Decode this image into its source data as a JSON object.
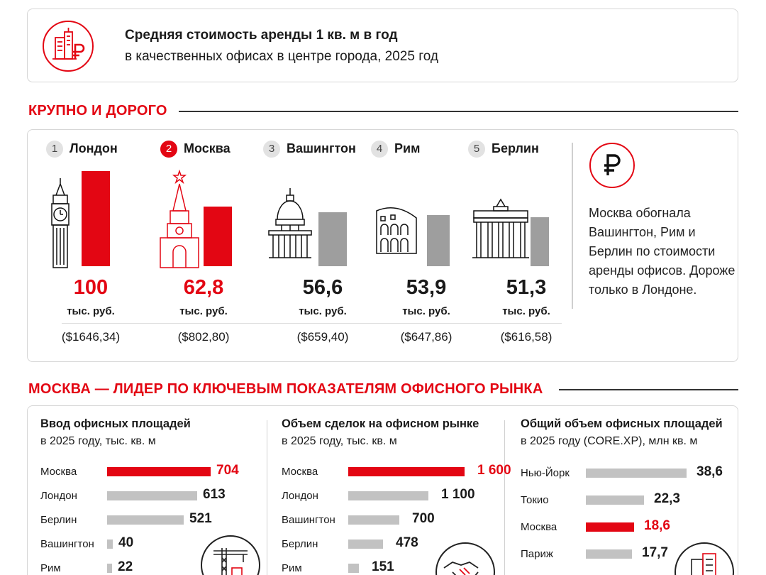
{
  "header": {
    "title": "Средняя стоимость аренды 1 кв. м в год",
    "subtitle": "в качественных офисах в центре города, 2025 год"
  },
  "section1": {
    "title": "КРУПНО И ДОРОГО"
  },
  "section2": {
    "title": "МОСКВА — ЛИДЕР ПО КЛЮЧЕВЫМ ПОКАЗАТЕЛЯМ ОФИСНОГО РЫНКА"
  },
  "note": "Москва обогнала Вашингтон, Рим и Берлин по стоимости аренды офисов. Дороже только в Лондоне.",
  "colors": {
    "accent": "#e30613",
    "bar_gray": "#c2c2c2",
    "bar_gray_dark": "#9e9e9e"
  },
  "chart_data": [
    {
      "type": "bar",
      "categories": [
        "Лондон",
        "Москва",
        "Вашингтон",
        "Рим",
        "Берлин"
      ],
      "ranks": [
        "1",
        "2",
        "3",
        "4",
        "5"
      ],
      "values": [
        100,
        62.8,
        56.6,
        53.9,
        51.3
      ],
      "value_labels": [
        "100",
        "62,8",
        "56,6",
        "53,9",
        "51,3"
      ],
      "unit_label": "тыс. руб.",
      "usd_labels": [
        "($1646,34)",
        "($802,80)",
        "($659,40)",
        "($647,86)",
        "($616,58)"
      ],
      "highlight": [
        "Лондон",
        "Москва"
      ],
      "icons": [
        "big-ben-icon",
        "kremlin-tower-icon",
        "capitol-icon",
        "colosseum-icon",
        "brandenburg-gate-icon"
      ]
    },
    {
      "type": "bar",
      "title": "Ввод офисных площадей",
      "subtitle": "в 2025 году, тыс. кв. м",
      "categories": [
        "Москва",
        "Лондон",
        "Берлин",
        "Вашингтон",
        "Рим"
      ],
      "values": [
        704,
        613,
        521,
        40,
        22
      ],
      "value_labels": [
        "704",
        "613",
        "521",
        "40",
        "22"
      ],
      "highlight": [
        "Москва"
      ],
      "icon": "construction-crane-icon"
    },
    {
      "type": "bar",
      "title": "Объем сделок на офисном рынке",
      "subtitle": "в 2025 году, тыс. кв. м",
      "categories": [
        "Москва",
        "Лондон",
        "Вашингтон",
        "Берлин",
        "Рим"
      ],
      "values": [
        1600,
        1100,
        700,
        478,
        151
      ],
      "value_labels": [
        "1 600",
        "1 100",
        "700",
        "478",
        "151"
      ],
      "highlight": [
        "Москва"
      ],
      "icon": "handshake-icon"
    },
    {
      "type": "bar",
      "title": "Общий объем офисных площадей",
      "subtitle": "в 2025 году (CORE.XP), млн кв. м",
      "categories": [
        "Нью-Йорк",
        "Токио",
        "Москва",
        "Париж"
      ],
      "values": [
        38.6,
        22.3,
        18.6,
        17.7
      ],
      "value_labels": [
        "38,6",
        "22,3",
        "18,6",
        "17,7"
      ],
      "highlight": [
        "Москва"
      ],
      "icon": "office-buildings-icon"
    }
  ]
}
